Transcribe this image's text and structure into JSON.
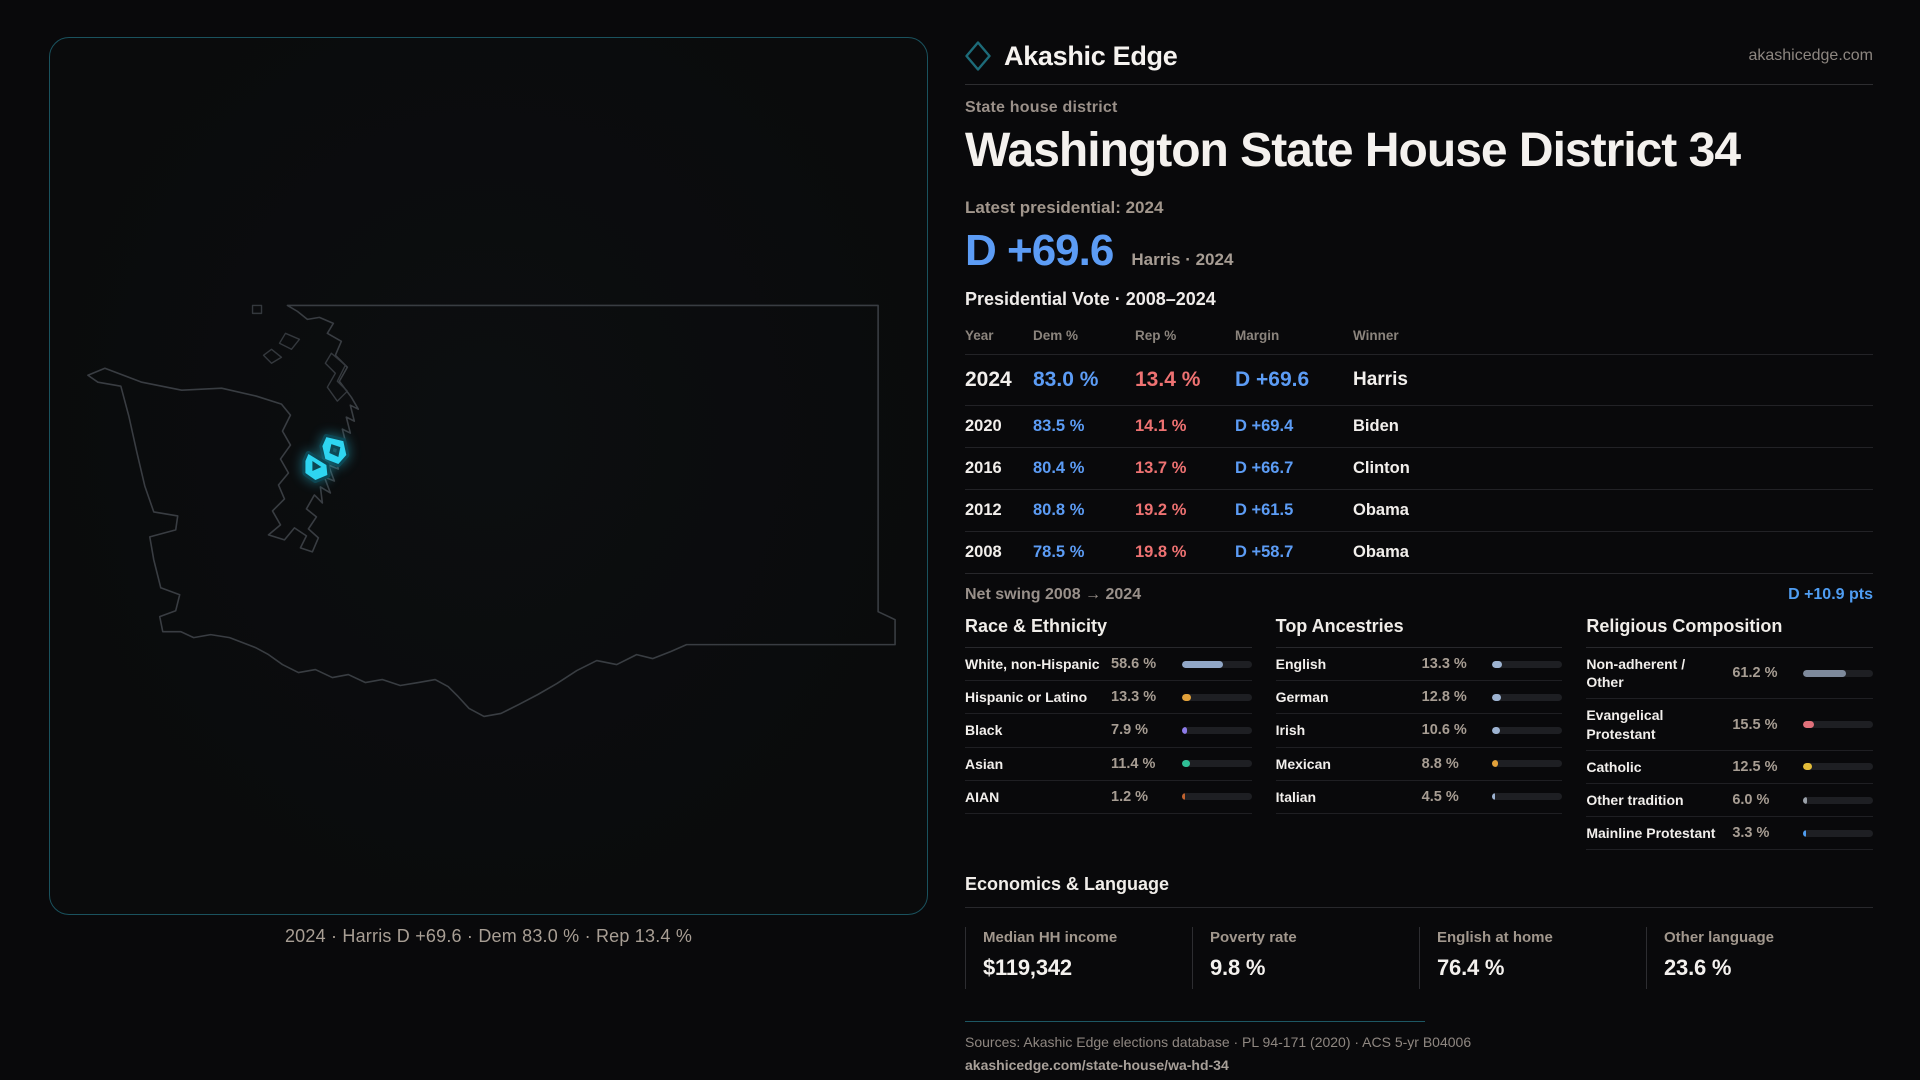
{
  "colors": {
    "accent": "#2ed5f1",
    "dem": "#5c9cf5",
    "rep": "#ee7272",
    "page-bg": "#09090b",
    "panel-border": "#1a525e"
  },
  "brand": {
    "name": "Akashic Edge",
    "domain": "akashicedge.com",
    "logo_icon": "diamond-outline-icon"
  },
  "page": {
    "kicker": "State house district",
    "title": "Washington State House District 34",
    "latest_label": "Latest presidential: 2024",
    "headline_margin": "D +69.6",
    "headline_note": "Harris · 2024",
    "table_title": "Presidential Vote · 2008–2024"
  },
  "map": {
    "caption": "2024 · Harris D +69.6 · Dem 83.0 % · Rep 13.4 %",
    "highlight_color": "#2ed5f1"
  },
  "vote_table": {
    "columns": [
      "Year",
      "Dem %",
      "Rep %",
      "Margin",
      "Winner"
    ],
    "rows": [
      {
        "year": "2024",
        "dem": "83.0 %",
        "rep": "13.4 %",
        "margin": "D +69.6",
        "winner": "Harris"
      },
      {
        "year": "2020",
        "dem": "83.5 %",
        "rep": "14.1 %",
        "margin": "D +69.4",
        "winner": "Biden"
      },
      {
        "year": "2016",
        "dem": "80.4 %",
        "rep": "13.7 %",
        "margin": "D +66.7",
        "winner": "Clinton"
      },
      {
        "year": "2012",
        "dem": "80.8 %",
        "rep": "19.2 %",
        "margin": "D +61.5",
        "winner": "Obama"
      },
      {
        "year": "2008",
        "dem": "78.5 %",
        "rep": "19.8 %",
        "margin": "D +58.7",
        "winner": "Obama"
      }
    ]
  },
  "net_swing": {
    "label": "Net swing 2008 → 2024",
    "value": "D +10.9 pts"
  },
  "demographics": {
    "race": {
      "title": "Race & Ethnicity",
      "rows": [
        {
          "label": "White, non-Hispanic",
          "value": "58.6 %",
          "pct": 58.6,
          "color": "#91a7c7"
        },
        {
          "label": "Hispanic or Latino",
          "value": "13.3 %",
          "pct": 13.3,
          "color": "#e2a13a"
        },
        {
          "label": "Black",
          "value": "7.9 %",
          "pct": 7.9,
          "color": "#8d7be8"
        },
        {
          "label": "Asian",
          "value": "11.4 %",
          "pct": 11.4,
          "color": "#2fbf96"
        },
        {
          "label": "AIAN",
          "value": "1.2 %",
          "pct": 1.2,
          "color": "#c0622f"
        }
      ]
    },
    "ancestries": {
      "title": "Top Ancestries",
      "rows": [
        {
          "label": "English",
          "value": "13.3 %",
          "pct": 13.3,
          "color": "#9db3d1"
        },
        {
          "label": "German",
          "value": "12.8 %",
          "pct": 12.8,
          "color": "#9db3d1"
        },
        {
          "label": "Irish",
          "value": "10.6 %",
          "pct": 10.6,
          "color": "#9db3d1"
        },
        {
          "label": "Mexican",
          "value": "8.8 %",
          "pct": 8.8,
          "color": "#e2a13a"
        },
        {
          "label": "Italian",
          "value": "4.5 %",
          "pct": 4.5,
          "color": "#9db3d1"
        }
      ]
    },
    "religion": {
      "title": "Religious Composition",
      "rows": [
        {
          "label": "Non-adherent / Other",
          "value": "61.2 %",
          "pct": 61.2,
          "color": "#7e8a9c"
        },
        {
          "label": "Evangelical Protestant",
          "value": "15.5 %",
          "pct": 15.5,
          "color": "#e0707a"
        },
        {
          "label": "Catholic",
          "value": "12.5 %",
          "pct": 12.5,
          "color": "#e3bc39"
        },
        {
          "label": "Other tradition",
          "value": "6.0 %",
          "pct": 6.0,
          "color": "#9aa0a8"
        },
        {
          "label": "Mainline Protestant",
          "value": "3.3 %",
          "pct": 3.3,
          "color": "#4f9df0"
        }
      ]
    }
  },
  "economics": {
    "title": "Economics & Language",
    "stats": [
      {
        "label": "Median HH income",
        "value": "$119,342"
      },
      {
        "label": "Poverty rate",
        "value": "9.8 %"
      },
      {
        "label": "English at home",
        "value": "76.4 %"
      },
      {
        "label": "Other language",
        "value": "23.6 %"
      }
    ]
  },
  "footer": {
    "sources": "Sources: Akashic Edge elections database · PL 94-171 (2020) · ACS 5-yr B04006",
    "permalink": "akashicedge.com/state-house/wa-hd-34"
  }
}
